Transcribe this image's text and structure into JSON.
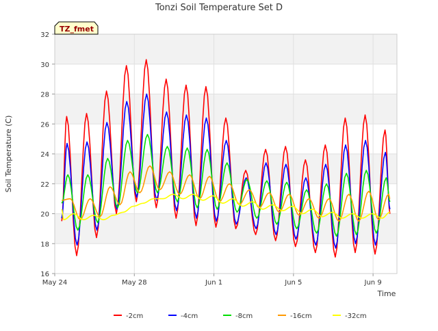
{
  "chart_data": {
    "type": "line",
    "title": "Tonzi Soil Temperature Set D",
    "xlabel": "Time",
    "ylabel": "Soil Temperature (C)",
    "station_label": "TZ_fmet",
    "xlim": [
      0,
      17.2
    ],
    "ylim": [
      16,
      32
    ],
    "yticks": [
      16,
      18,
      20,
      22,
      24,
      26,
      28,
      30,
      32
    ],
    "xticks": [
      {
        "value": 0,
        "label": "May 24"
      },
      {
        "value": 4,
        "label": "May 28"
      },
      {
        "value": 8,
        "label": "Jun 1"
      },
      {
        "value": 12,
        "label": "Jun 5"
      },
      {
        "value": 16,
        "label": "Jun 9"
      }
    ],
    "grid": true,
    "legend_position": "bottom",
    "daily_extremes_note": "peaks/troughs per day, days 0..16",
    "series": [
      {
        "name": "-2cm",
        "color": "#ff0000",
        "phase": 0.6,
        "start": 19.5,
        "end": 20.0,
        "max": [
          26.5,
          26.7,
          28.2,
          29.9,
          30.3,
          29.0,
          28.6,
          28.5,
          26.4,
          22.9,
          24.3,
          24.5,
          23.6,
          24.6,
          26.4,
          26.6,
          25.6
        ],
        "min": [
          17.5,
          17.2,
          18.4,
          20.0,
          20.8,
          20.4,
          19.7,
          19.2,
          19.1,
          19.0,
          18.6,
          18.2,
          17.8,
          17.4,
          17.1,
          17.4,
          17.3
        ]
      },
      {
        "name": "-4cm",
        "color": "#0000ff",
        "phase": 0.62,
        "start": 19.7,
        "end": 20.3,
        "max": [
          24.7,
          24.8,
          26.1,
          27.5,
          28.0,
          26.8,
          26.6,
          26.4,
          24.9,
          22.4,
          23.4,
          23.3,
          22.4,
          23.3,
          24.6,
          24.9,
          24.1
        ],
        "min": [
          18.4,
          17.9,
          18.9,
          20.3,
          21.1,
          20.9,
          20.2,
          19.7,
          19.5,
          19.3,
          19.0,
          18.6,
          18.3,
          17.9,
          17.7,
          18.0,
          17.9
        ]
      },
      {
        "name": "-8cm",
        "color": "#00dd00",
        "phase": 0.66,
        "start": 20.7,
        "end": 20.8,
        "max": [
          22.6,
          22.6,
          23.7,
          24.9,
          25.3,
          24.5,
          24.4,
          24.3,
          23.4,
          22.3,
          22.2,
          22.1,
          21.6,
          22.0,
          22.7,
          22.9,
          22.4
        ],
        "min": [
          19.2,
          18.9,
          19.4,
          20.4,
          21.4,
          21.4,
          20.8,
          20.4,
          20.3,
          20.1,
          19.7,
          19.3,
          19.0,
          18.7,
          18.5,
          18.6,
          18.7
        ]
      },
      {
        "name": "-16cm",
        "color": "#ff9900",
        "phase": 0.78,
        "start": 20.9,
        "end": 21.0,
        "max": [
          21.0,
          21.0,
          21.8,
          22.8,
          23.2,
          22.8,
          22.6,
          22.5,
          22.0,
          21.6,
          21.4,
          21.3,
          21.0,
          21.0,
          21.3,
          21.5,
          21.3
        ],
        "min": [
          19.9,
          19.6,
          19.8,
          20.6,
          21.4,
          21.6,
          21.3,
          21.0,
          20.8,
          20.6,
          20.4,
          20.1,
          19.9,
          19.7,
          19.5,
          19.5,
          19.6
        ]
      },
      {
        "name": "-32cm",
        "color": "#ffff00",
        "phase": 0.95,
        "start": 20.3,
        "end": 20.1,
        "max": [
          20.0,
          19.9,
          19.9,
          20.5,
          21.0,
          21.3,
          21.3,
          21.2,
          21.0,
          20.8,
          20.6,
          20.5,
          20.3,
          20.1,
          20.0,
          20.0,
          20.0
        ],
        "min": [
          19.6,
          19.6,
          19.6,
          20.1,
          20.7,
          21.0,
          21.0,
          20.9,
          20.7,
          20.5,
          20.3,
          20.2,
          20.0,
          19.8,
          19.7,
          19.7,
          19.7
        ]
      }
    ]
  }
}
